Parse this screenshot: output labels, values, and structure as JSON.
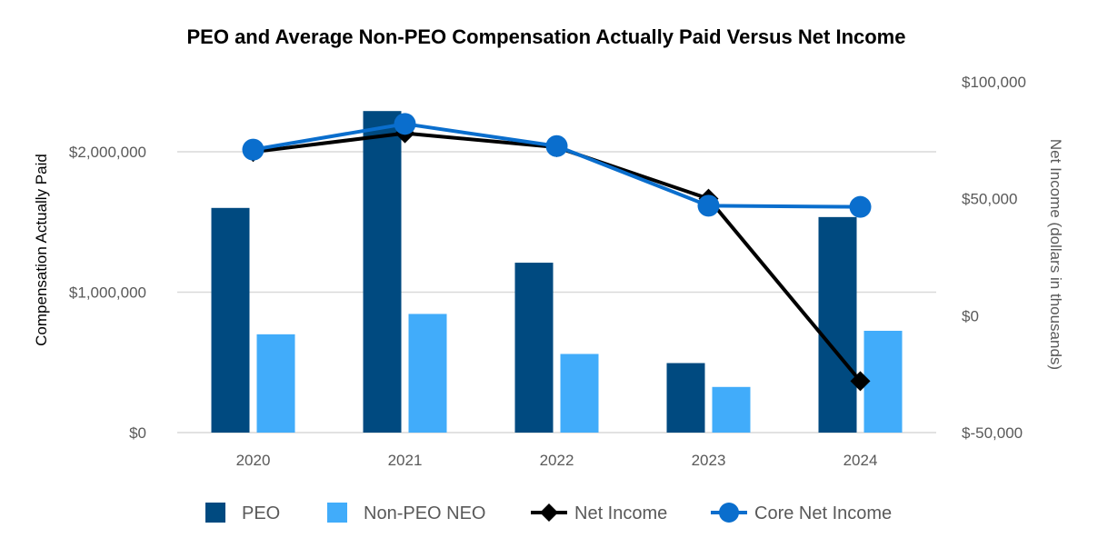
{
  "chart_data": {
    "type": "bar",
    "title": "PEO and Average Non-PEO Compensation Actually Paid Versus Net Income",
    "categories": [
      "2020",
      "2021",
      "2022",
      "2023",
      "2024"
    ],
    "y_left": {
      "label": "Compensation Actually Paid",
      "range": [
        0,
        2300000
      ],
      "ticks": [
        0,
        1000000,
        2000000
      ],
      "tick_labels": [
        "$0",
        "$1,000,000",
        "$2,000,000"
      ]
    },
    "y_right": {
      "label": "Net Income (dollars in thousands)",
      "range": [
        -50000,
        100000
      ],
      "ticks": [
        -50000,
        0,
        50000,
        100000
      ],
      "tick_labels": [
        "$-50,000",
        "$0",
        "$50,000",
        "$100,000"
      ]
    },
    "grid": true,
    "legend_position": "bottom",
    "series": [
      {
        "name": "PEO",
        "kind": "bar",
        "axis": "left",
        "color": "#004a80",
        "values": [
          1600000,
          2290000,
          1210000,
          495000,
          1535000
        ]
      },
      {
        "name": "Non-PEO NEO",
        "kind": "bar",
        "axis": "left",
        "color": "#41acfa",
        "values": [
          700000,
          845000,
          560000,
          325000,
          725000
        ]
      },
      {
        "name": "Net Income",
        "kind": "line",
        "marker": "diamond",
        "axis": "right",
        "color": "#000000",
        "values": [
          70000,
          78000,
          72000,
          50000,
          -28000
        ]
      },
      {
        "name": "Core Net Income",
        "kind": "line",
        "marker": "circle",
        "axis": "right",
        "color": "#0a6ecd",
        "values": [
          71000,
          82000,
          72500,
          47000,
          46500
        ]
      }
    ]
  }
}
